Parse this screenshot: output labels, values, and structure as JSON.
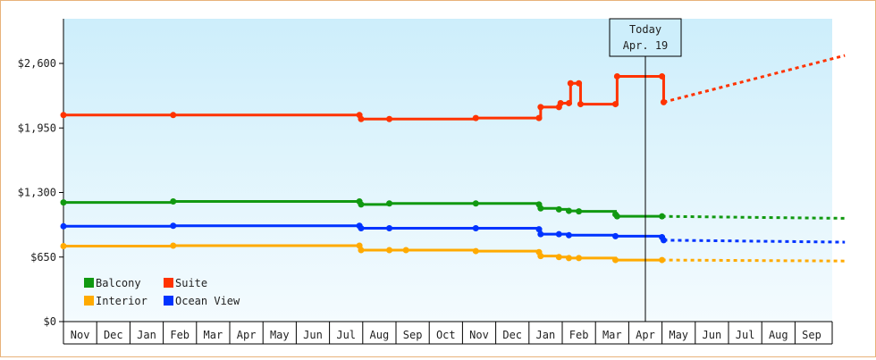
{
  "chart_data": {
    "type": "line",
    "title": "",
    "xlabel": "",
    "ylabel": "",
    "ylim": [
      0,
      2900
    ],
    "y_ticks": [
      {
        "value": 0,
        "label": "$0"
      },
      {
        "value": 650,
        "label": "$650"
      },
      {
        "value": 1300,
        "label": "$1,300"
      },
      {
        "value": 1950,
        "label": "$1,950"
      },
      {
        "value": 2600,
        "label": "$2,600"
      }
    ],
    "x_ticks": [
      "Nov",
      "Dec",
      "Jan",
      "Feb",
      "Mar",
      "Apr",
      "May",
      "Jun",
      "Jul",
      "Aug",
      "Sep",
      "Oct",
      "Nov",
      "Dec",
      "Jan",
      "Feb",
      "Mar",
      "Apr",
      "May",
      "Jun",
      "Jul",
      "Aug",
      "Sep"
    ],
    "grid": false,
    "legend_position": "lower-left",
    "annotation": {
      "line1": "Today",
      "line2": "Apr. 19",
      "x_month_index": 17.5
    },
    "series": [
      {
        "name": "Suite",
        "color": "#ff3300",
        "points": [
          [
            0,
            2080
          ],
          [
            3.3,
            2080
          ],
          [
            8.9,
            2080
          ],
          [
            8.95,
            2040
          ],
          [
            9.8,
            2040
          ],
          [
            12.4,
            2050
          ],
          [
            14.3,
            2050
          ],
          [
            14.35,
            2160
          ],
          [
            14.9,
            2160
          ],
          [
            14.95,
            2200
          ],
          [
            15.2,
            2200
          ],
          [
            15.25,
            2400
          ],
          [
            15.5,
            2400
          ],
          [
            15.55,
            2190
          ],
          [
            16.6,
            2190
          ],
          [
            16.65,
            2470
          ],
          [
            18.0,
            2470
          ],
          [
            18.05,
            2210
          ]
        ],
        "forecast": [
          [
            18.05,
            2210
          ],
          [
            23.5,
            2680
          ]
        ]
      },
      {
        "name": "Balcony",
        "color": "#119911",
        "points": [
          [
            0,
            1200
          ],
          [
            3.3,
            1210
          ],
          [
            8.9,
            1210
          ],
          [
            8.95,
            1180
          ],
          [
            9.8,
            1190
          ],
          [
            12.4,
            1190
          ],
          [
            14.3,
            1180
          ],
          [
            14.35,
            1140
          ],
          [
            14.9,
            1130
          ],
          [
            15.2,
            1115
          ],
          [
            15.5,
            1110
          ],
          [
            16.6,
            1080
          ],
          [
            16.65,
            1060
          ],
          [
            18.0,
            1060
          ]
        ],
        "forecast": [
          [
            18.0,
            1060
          ],
          [
            20.6,
            1050
          ],
          [
            23.5,
            1040
          ]
        ]
      },
      {
        "name": "Ocean View",
        "color": "#0033ff",
        "points": [
          [
            0,
            960
          ],
          [
            3.3,
            965
          ],
          [
            8.9,
            965
          ],
          [
            8.95,
            940
          ],
          [
            9.8,
            940
          ],
          [
            12.4,
            940
          ],
          [
            14.3,
            930
          ],
          [
            14.35,
            880
          ],
          [
            14.9,
            880
          ],
          [
            15.2,
            870
          ],
          [
            16.6,
            860
          ],
          [
            18.0,
            850
          ],
          [
            18.05,
            820
          ]
        ],
        "forecast": [
          [
            18.05,
            820
          ],
          [
            23.5,
            800
          ]
        ]
      },
      {
        "name": "Interior",
        "color": "#ffaa00",
        "points": [
          [
            0,
            760
          ],
          [
            3.3,
            765
          ],
          [
            8.9,
            765
          ],
          [
            8.95,
            720
          ],
          [
            9.8,
            720
          ],
          [
            10.3,
            720
          ],
          [
            12.4,
            710
          ],
          [
            14.3,
            700
          ],
          [
            14.35,
            660
          ],
          [
            14.9,
            650
          ],
          [
            15.2,
            640
          ],
          [
            15.5,
            640
          ],
          [
            16.6,
            620
          ],
          [
            18.0,
            620
          ]
        ],
        "forecast": [
          [
            18.0,
            620
          ],
          [
            23.5,
            610
          ]
        ]
      }
    ]
  },
  "legend": [
    {
      "label": "Balcony",
      "color": "#119911"
    },
    {
      "label": "Suite",
      "color": "#ff3300"
    },
    {
      "label": "Interior",
      "color": "#ffaa00"
    },
    {
      "label": "Ocean View",
      "color": "#0033ff"
    }
  ],
  "today": {
    "line1": "Today",
    "line2": "Apr. 19"
  }
}
